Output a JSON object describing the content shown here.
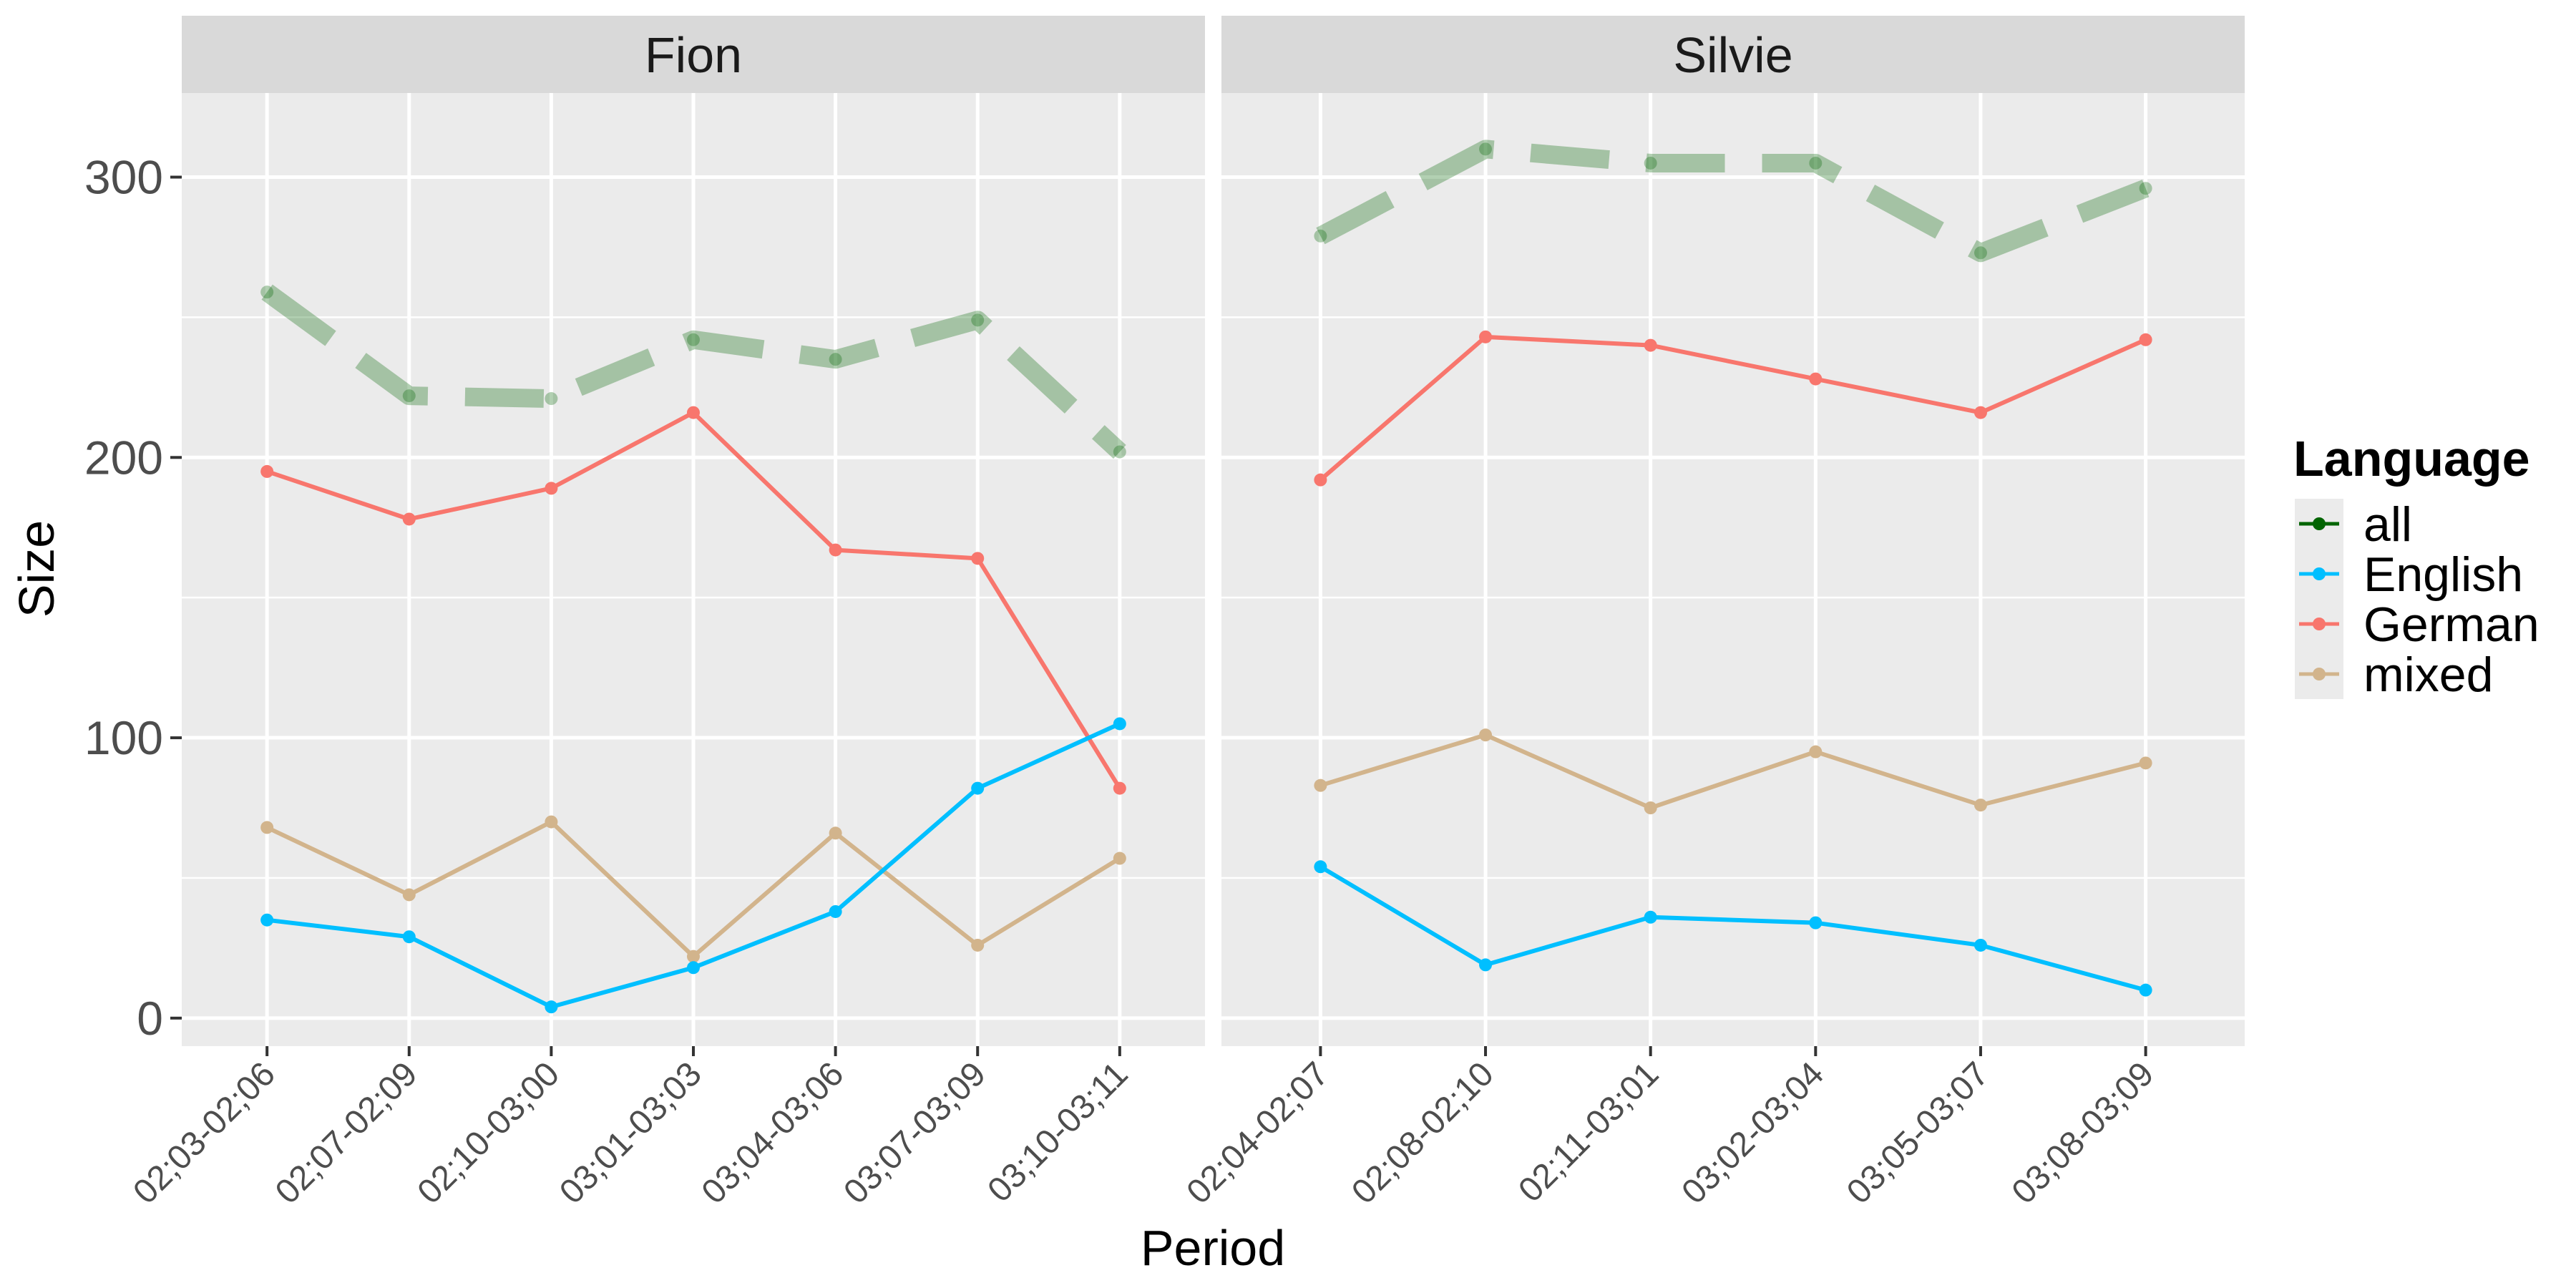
{
  "chart_data": {
    "type": "line",
    "xlabel": "Period",
    "ylabel": "Size",
    "ylim": [
      -10,
      330
    ],
    "y_ticks": [
      0,
      100,
      200,
      300
    ],
    "grid": true,
    "legend": {
      "title": "Language",
      "placement": "right",
      "entries": [
        "all",
        "English",
        "German",
        "mixed"
      ]
    },
    "series_styles": {
      "all": {
        "color": "#006400",
        "dashed": true,
        "alpha": 0.3
      },
      "English": {
        "color": "#00BFFF"
      },
      "German": {
        "color": "#F8766D"
      },
      "mixed": {
        "color": "#D2B48C"
      }
    },
    "panels": [
      {
        "strip": "Fion",
        "categories": [
          "02;03-02;06",
          "02;07-02;09",
          "02;10-03;00",
          "03;01-03;03",
          "03;04-03;06",
          "03;07-03;09",
          "03;10-03;11"
        ],
        "series": [
          {
            "name": "all",
            "values": [
              259,
              222,
              221,
              242,
              235,
              249,
              202
            ]
          },
          {
            "name": "English",
            "values": [
              35,
              29,
              4,
              18,
              38,
              82,
              105
            ]
          },
          {
            "name": "German",
            "values": [
              195,
              178,
              189,
              216,
              167,
              164,
              82
            ]
          },
          {
            "name": "mixed",
            "values": [
              68,
              44,
              70,
              22,
              66,
              26,
              57
            ]
          }
        ]
      },
      {
        "strip": "Silvie",
        "categories": [
          "02;04-02;07",
          "02;08-02;10",
          "02;11-03;01",
          "03;02-03;04",
          "03;05-03;07",
          "03;08-03;09"
        ],
        "series": [
          {
            "name": "all",
            "values": [
              279,
              310,
              305,
              305,
              273,
              296
            ]
          },
          {
            "name": "English",
            "values": [
              54,
              19,
              36,
              34,
              26,
              10
            ]
          },
          {
            "name": "German",
            "values": [
              192,
              243,
              240,
              228,
              216,
              242
            ]
          },
          {
            "name": "mixed",
            "values": [
              83,
              101,
              75,
              95,
              76,
              91
            ]
          }
        ]
      }
    ]
  }
}
